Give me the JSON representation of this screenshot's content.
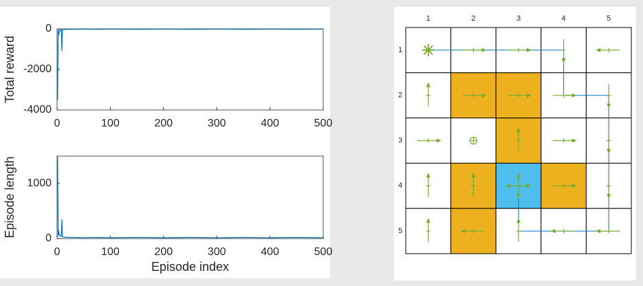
{
  "chart_data": [
    {
      "type": "line",
      "ylabel": "Total reward",
      "x": [
        1,
        2,
        3,
        4,
        5,
        6,
        7,
        8,
        9,
        10,
        15,
        20,
        30,
        50,
        80,
        100,
        150,
        200,
        250,
        300,
        350,
        400,
        450,
        500
      ],
      "series": [
        {
          "color": "#0072bd",
          "values": [
            -3500,
            -40,
            -300,
            -150,
            -60,
            -80,
            -40,
            -60,
            -1100,
            -30,
            -25,
            -20,
            -20,
            -15,
            -20,
            -15,
            -20,
            -15,
            -20,
            -15,
            -20,
            -15,
            -20,
            -15
          ]
        }
      ],
      "xlim": [
        0,
        500
      ],
      "xticks": [
        0,
        100,
        200,
        300,
        400,
        500
      ],
      "ylim": [
        -4000,
        0
      ],
      "yticks": [
        -4000,
        -2000,
        0
      ]
    },
    {
      "type": "line",
      "ylabel": "Episode length",
      "xlabel": "Episode index",
      "x": [
        1,
        2,
        3,
        4,
        5,
        6,
        7,
        8,
        9,
        10,
        15,
        20,
        30,
        50,
        80,
        100,
        150,
        200,
        250,
        300,
        350,
        400,
        450,
        500
      ],
      "series": [
        {
          "color": "#0072bd",
          "values": [
            1500,
            40,
            150,
            80,
            60,
            50,
            40,
            60,
            350,
            30,
            25,
            20,
            20,
            15,
            20,
            15,
            20,
            15,
            20,
            15,
            20,
            15,
            20,
            15
          ]
        }
      ],
      "xlim": [
        0,
        500
      ],
      "xticks": [
        0,
        100,
        200,
        300,
        400,
        500
      ],
      "ylim": [
        0,
        1500
      ],
      "yticks": [
        0,
        1000
      ]
    }
  ],
  "gridworld": {
    "columns": [
      "1",
      "2",
      "3",
      "4",
      "5"
    ],
    "rows": [
      "1",
      "2",
      "3",
      "4",
      "5"
    ]
  }
}
